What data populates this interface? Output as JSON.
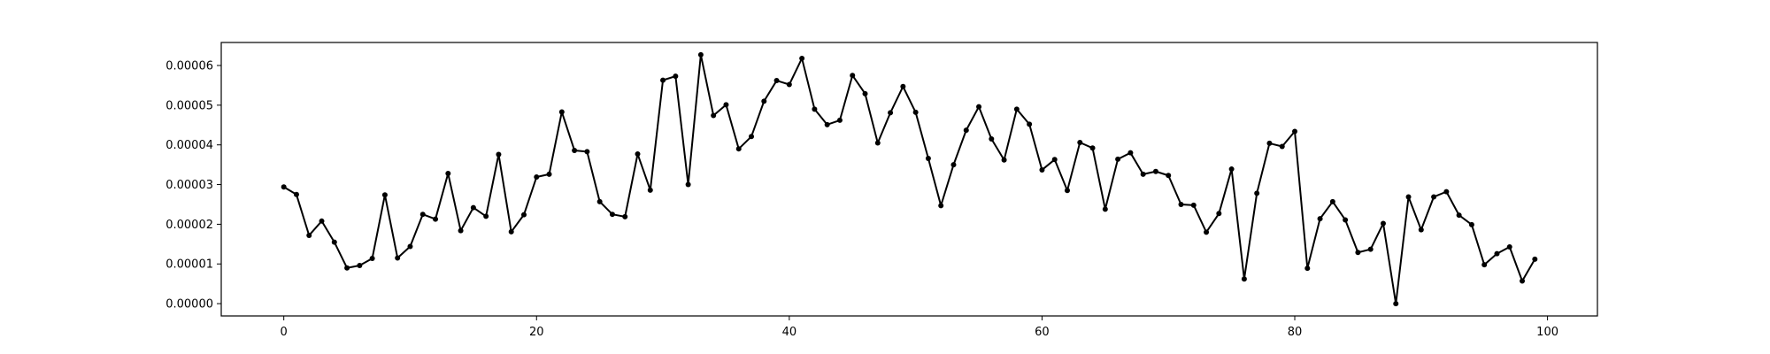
{
  "chart_data": {
    "type": "line",
    "x": [
      0,
      1,
      2,
      3,
      4,
      5,
      6,
      7,
      8,
      9,
      10,
      11,
      12,
      13,
      14,
      15,
      16,
      17,
      18,
      19,
      20,
      21,
      22,
      23,
      24,
      25,
      26,
      27,
      28,
      29,
      30,
      31,
      32,
      33,
      34,
      35,
      36,
      37,
      38,
      39,
      40,
      41,
      42,
      43,
      44,
      45,
      46,
      47,
      48,
      49,
      50,
      51,
      52,
      53,
      54,
      55,
      56,
      57,
      58,
      59,
      60,
      61,
      62,
      63,
      64,
      65,
      66,
      67,
      68,
      69,
      70,
      71,
      72,
      73,
      74,
      75,
      76,
      77,
      78,
      79,
      80,
      81,
      82,
      83,
      84,
      85,
      86,
      87,
      88,
      89,
      90,
      91,
      92,
      93,
      94,
      95,
      96,
      97,
      98,
      99
    ],
    "series": [
      {
        "values": [
          2.94e-05,
          2.75e-05,
          1.72e-05,
          2.08e-05,
          1.55e-05,
          9e-06,
          9.6e-06,
          1.14e-05,
          2.74e-05,
          1.15e-05,
          1.44e-05,
          2.25e-05,
          2.13e-05,
          3.28e-05,
          1.84e-05,
          2.42e-05,
          2.2e-05,
          3.76e-05,
          1.81e-05,
          2.24e-05,
          3.19e-05,
          3.26e-05,
          4.83e-05,
          3.86e-05,
          3.83e-05,
          2.57e-05,
          2.25e-05,
          2.19e-05,
          3.77e-05,
          2.86e-05,
          5.63e-05,
          5.73e-05,
          3e-05,
          6.27e-05,
          4.74e-05,
          5.01e-05,
          3.9e-05,
          4.21e-05,
          5.1e-05,
          5.62e-05,
          5.52e-05,
          6.18e-05,
          4.9e-05,
          4.51e-05,
          4.62e-05,
          5.75e-05,
          5.29e-05,
          4.05e-05,
          4.81e-05,
          5.47e-05,
          4.82e-05,
          3.66e-05,
          2.47e-05,
          3.5e-05,
          4.37e-05,
          4.96e-05,
          4.15e-05,
          3.62e-05,
          4.9e-05,
          4.52e-05,
          3.37e-05,
          3.63e-05,
          2.85e-05,
          4.06e-05,
          3.92e-05,
          2.38e-05,
          3.64e-05,
          3.8e-05,
          3.26e-05,
          3.33e-05,
          3.23e-05,
          2.5e-05,
          2.48e-05,
          1.8e-05,
          2.27e-05,
          3.39e-05,
          6.2e-06,
          2.78e-05,
          4.04e-05,
          3.96e-05,
          4.34e-05,
          8.9e-06,
          2.14e-05,
          2.57e-05,
          2.11e-05,
          1.29e-05,
          1.37e-05,
          2.02e-05,
          0.0,
          2.69e-05,
          1.86e-05,
          2.69e-05,
          2.82e-05,
          2.23e-05,
          1.99e-05,
          9.8e-06,
          1.26e-05,
          1.43e-05,
          5.7e-06,
          1.12e-05
        ],
        "color": "#000000",
        "marker": "dot"
      }
    ],
    "title": "",
    "xlabel": "",
    "ylabel": "",
    "xlim": [
      -4.95,
      103.95
    ],
    "ylim": [
      -3.1e-06,
      6.58e-05
    ],
    "xticks": [
      0,
      20,
      40,
      60,
      80,
      100
    ],
    "xtick_labels": [
      "0",
      "20",
      "40",
      "60",
      "80",
      "100"
    ],
    "yticks": [
      0,
      1e-05,
      2e-05,
      3e-05,
      4e-05,
      5e-05,
      6e-05
    ],
    "ytick_labels": [
      "0.00000",
      "0.00001",
      "0.00002",
      "0.00003",
      "0.00004",
      "0.00005",
      "0.00006"
    ],
    "grid": false,
    "legend": "none"
  }
}
